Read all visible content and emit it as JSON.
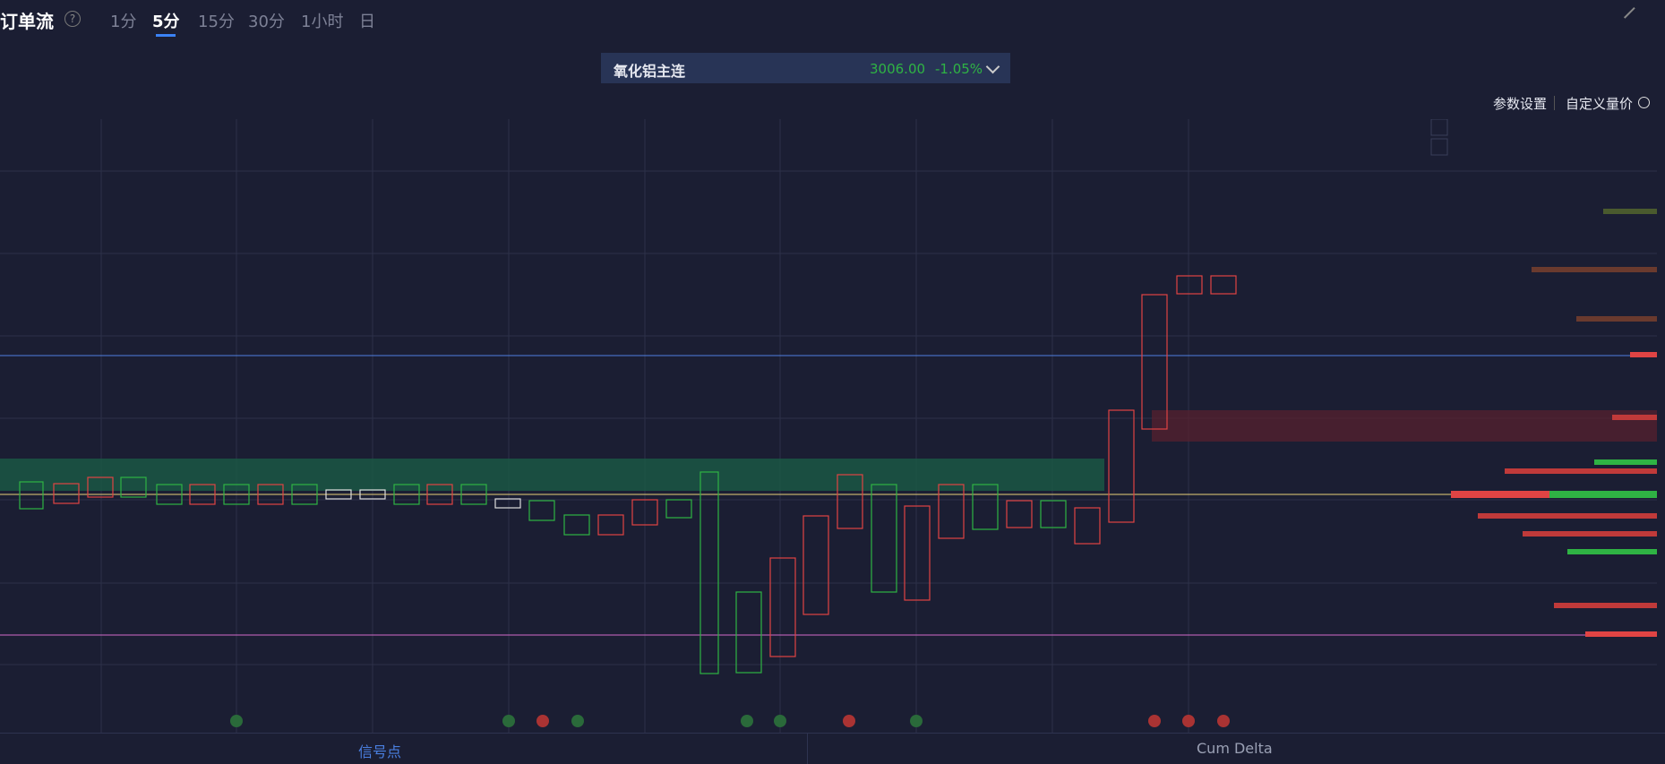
{
  "header": {
    "title": "订单流",
    "tabs": [
      "1分",
      "5分",
      "15分",
      "30分",
      "1小时",
      "日"
    ]
  },
  "instrument": {
    "name": "氧化铝主连",
    "price": "3006.00",
    "change": "-1.05%"
  },
  "toolbar": {
    "settings": "参数设置",
    "custom": "自定义量价"
  },
  "bottom_tabs": [
    "信号点",
    "Cum Delta"
  ]
}
